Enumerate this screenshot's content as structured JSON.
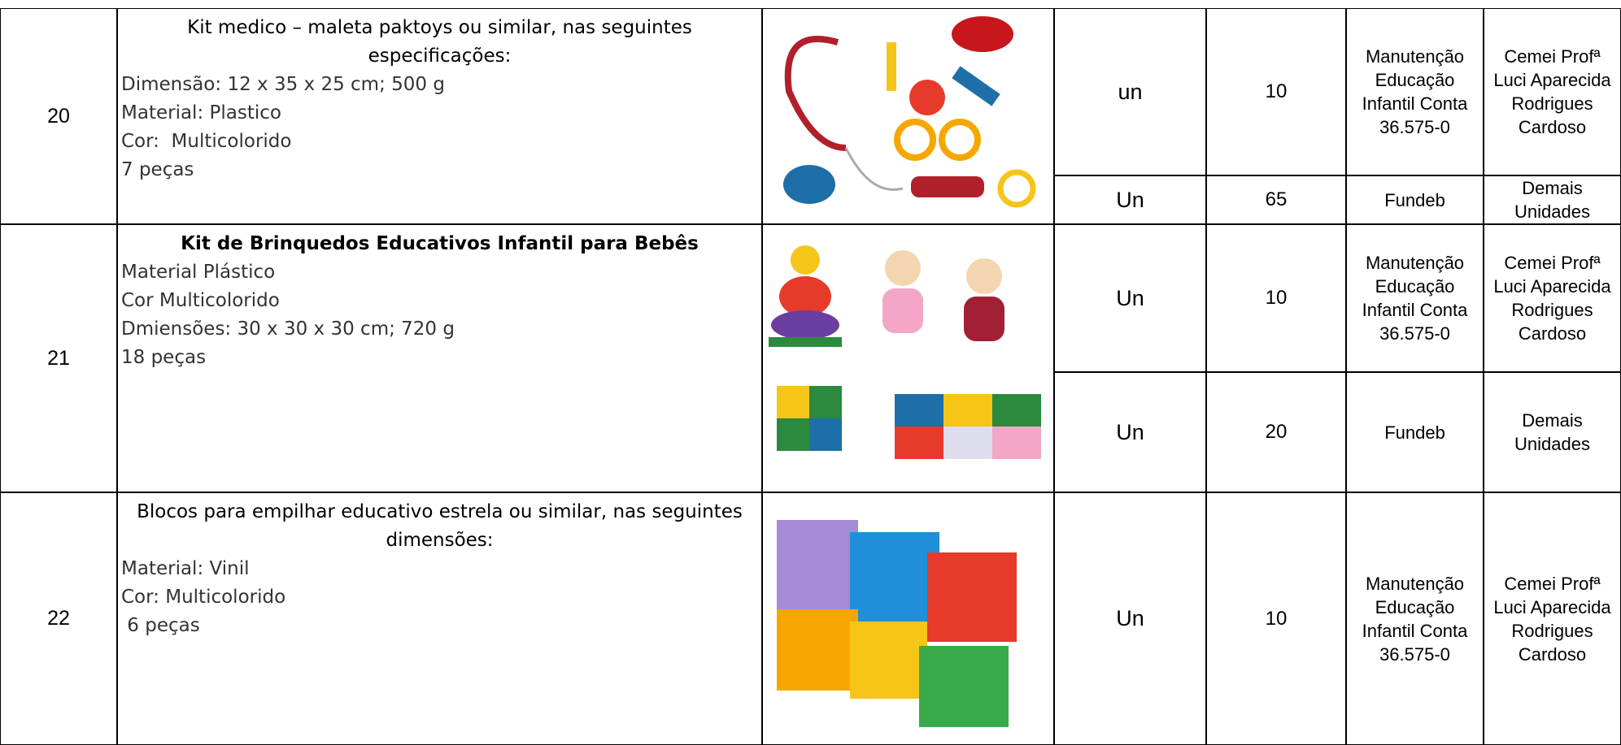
{
  "table": {
    "rows": [
      {
        "number": "20",
        "description": {
          "title": "Kit medico – maleta paktoys ou similar, nas seguintes especificações:",
          "lines": [
            "Dimensão: 12 x 35 x 25 cm; 500 g",
            "Material: Plastico",
            "Cor:  Multicolorido",
            "7 peças"
          ]
        },
        "entries": [
          {
            "unit": "un",
            "quantity": "10",
            "source": "Manutenção Educação Infantil Conta 36.575-0",
            "destination": "Cemei Profª Luci Aparecida Rodrigues Cardoso"
          },
          {
            "unit": "Un",
            "quantity": "65",
            "source": "Fundeb",
            "destination": "Demais Unidades"
          }
        ]
      },
      {
        "number": "21",
        "description": {
          "title": "Kit de Brinquedos Educativos Infantil para Bebês",
          "lines": [
            "Material Plástico",
            "Cor Multicolorido",
            "Dmiensões: 30 x 30 x 30 cm; 720 g",
            "18 peças"
          ]
        },
        "entries": [
          {
            "unit": "Un",
            "quantity": "10",
            "source": "Manutenção Educação Infantil Conta 36.575-0",
            "destination": "Cemei Profª Luci Aparecida Rodrigues Cardoso"
          },
          {
            "unit": "Un",
            "quantity": "20",
            "source": "Fundeb",
            "destination": "Demais Unidades"
          }
        ]
      },
      {
        "number": "22",
        "description": {
          "title": "Blocos para empilhar educativo estrela ou similar, nas seguintes dimensões:",
          "lines": [
            "Material: Vinil",
            "Cor: Multicolorido",
            " 6 peças"
          ]
        },
        "entries": [
          {
            "unit": "Un",
            "quantity": "10",
            "source": "Manutenção Educação Infantil Conta 36.575-0",
            "destination": "Cemei Profª Luci Aparecida Rodrigues Cardoso"
          }
        ]
      }
    ]
  }
}
